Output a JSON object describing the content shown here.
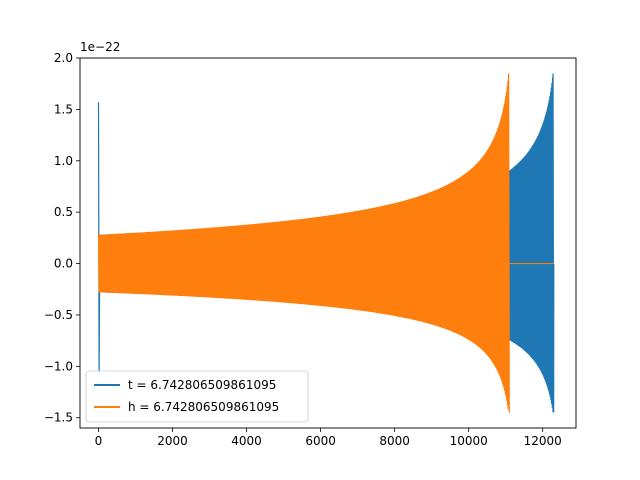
{
  "chart_data": {
    "type": "line",
    "title": "",
    "xlabel": "",
    "ylabel": "",
    "xlim": [
      -500,
      12900
    ],
    "ylim": [
      -1.6,
      2.0
    ],
    "y_scale_label": "1e−22",
    "x_ticks": [
      0,
      2000,
      4000,
      6000,
      8000,
      10000,
      12000
    ],
    "x_tick_labels": [
      "0",
      "2000",
      "4000",
      "6000",
      "8000",
      "10000",
      "12000"
    ],
    "y_ticks": [
      -1.5,
      -1.0,
      -0.5,
      0.0,
      0.5,
      1.0,
      1.5,
      2.0
    ],
    "y_tick_labels": [
      "−1.5",
      "−1.0",
      "−0.5",
      "0.0",
      "0.5",
      "1.0",
      "1.5",
      "2.0"
    ],
    "grid": false,
    "legend_position": "lower-left",
    "series": [
      {
        "name": "t = 6.742806509861095",
        "color": "#1f77b4",
        "start_spike": {
          "x": 0,
          "max": 1.57,
          "min": -1.07
        },
        "oscillation": {
          "x_start": 0,
          "x_end": 12280,
          "amp_start": 0.28,
          "amp_end": 1.85,
          "amp_min_end": -1.45
        },
        "x_end": 12300
      },
      {
        "name": "h = 6.742806509861095",
        "color": "#ff7f0e",
        "start_spike": {
          "x": 0,
          "max": 0.28,
          "min": -0.28
        },
        "oscillation": {
          "x_start": 0,
          "x_end": 11080,
          "amp_start": 0.28,
          "amp_end": 1.85,
          "amp_min_end": -1.45
        },
        "flat_after": {
          "x_start": 11090,
          "x_end": 12300,
          "y": 0.0
        },
        "x_end": 12300
      }
    ]
  }
}
